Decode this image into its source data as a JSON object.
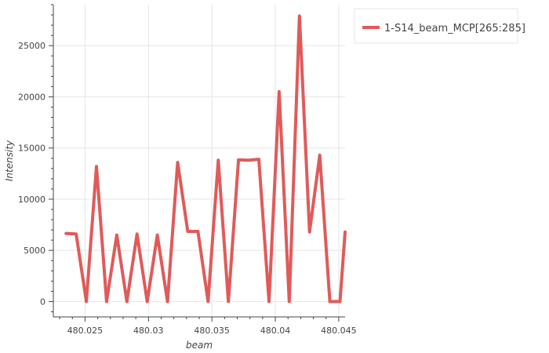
{
  "chart_data": {
    "type": "line",
    "title": "",
    "xlabel": "beam",
    "ylabel": "Intensity",
    "xlim": [
      480.0225,
      480.0455
    ],
    "ylim": [
      -1500,
      29000
    ],
    "xticks": [
      480.025,
      480.03,
      480.035,
      480.04,
      480.045
    ],
    "xtick_labels": [
      "480.025",
      "480.03",
      "480.035",
      "480.04",
      "480.045"
    ],
    "yticks": [
      0,
      5000,
      10000,
      15000,
      20000,
      25000
    ],
    "ytick_labels": [
      "0",
      "5000",
      "10000",
      "15000",
      "20000",
      "25000"
    ],
    "grid": true,
    "legend_position": "top-right outside",
    "series": [
      {
        "name": "1-S14_beam_MCP[265:285]",
        "color": "#e05a5a",
        "x": [
          480.0235,
          480.0243,
          480.0251,
          480.0259,
          480.0267,
          480.0275,
          480.0283,
          480.0291,
          480.0299,
          480.0307,
          480.0315,
          480.0323,
          480.0331,
          480.0339,
          480.0347,
          480.0355,
          480.0363,
          480.0371,
          480.0379,
          480.0387,
          480.0395,
          480.0403,
          480.0411,
          480.0419,
          480.0427,
          480.0435,
          480.0443,
          480.0451,
          480.0455
        ],
        "y": [
          6650,
          6600,
          0,
          13200,
          0,
          6500,
          0,
          6600,
          0,
          6500,
          0,
          13600,
          6850,
          6850,
          0,
          13800,
          0,
          13850,
          13800,
          13900,
          0,
          20500,
          0,
          27900,
          6800,
          14300,
          0,
          0,
          6800
        ]
      }
    ]
  }
}
